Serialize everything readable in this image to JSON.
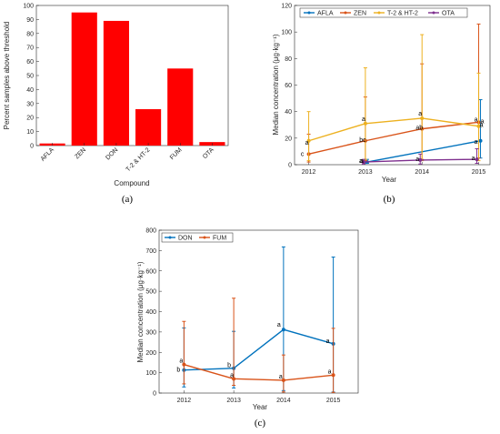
{
  "colors": {
    "red": "#ff0000",
    "blue": "#0072bd",
    "orange": "#d95319",
    "yellow": "#edb120",
    "purple": "#7e2f8e",
    "axis": "#262626"
  },
  "chart_data": [
    {
      "type": "bar",
      "panel_label": "(a)",
      "categories": [
        "AFLA",
        "ZEN",
        "DON",
        "T-2 & HT-2",
        "FUM",
        "OTA"
      ],
      "values": [
        1.5,
        95,
        89,
        26,
        55,
        2.5
      ],
      "xlabel": "Compound",
      "ylabel": "Percent samples above threshold",
      "ylim": [
        0,
        100
      ],
      "yticks": [
        0,
        10,
        20,
        30,
        40,
        50,
        60,
        70,
        80,
        90,
        100
      ],
      "grid": false,
      "bar_color": "#ff0000"
    },
    {
      "type": "line",
      "panel_label": "(b)",
      "x": [
        2012,
        2013,
        2014,
        2015
      ],
      "xticks": [
        "2012",
        "2013",
        "2014",
        "2015"
      ],
      "xlim": [
        2011.75,
        2015.2
      ],
      "xlabel": "Year",
      "ylabel": "Median concentration (μg·kg⁻¹)",
      "ylim": [
        0,
        120
      ],
      "yticks": [
        0,
        20,
        40,
        60,
        80,
        100,
        120
      ],
      "legend_position": "top",
      "series": [
        {
          "name": "AFLA",
          "color": "#0072bd",
          "values": [
            null,
            2,
            null,
            18
          ],
          "lower": [
            null,
            1,
            null,
            5
          ],
          "upper": [
            null,
            4,
            null,
            49
          ]
        },
        {
          "name": "ZEN",
          "color": "#d95319",
          "values": [
            8,
            18,
            27,
            32
          ],
          "lower": [
            2,
            3,
            4,
            5
          ],
          "upper": [
            23,
            51,
            76,
            106
          ]
        },
        {
          "name": "T-2 & HT-2",
          "color": "#edb120",
          "values": [
            18,
            31,
            35,
            29
          ],
          "lower": [
            3,
            4,
            3,
            3
          ],
          "upper": [
            40,
            73,
            98,
            69
          ]
        },
        {
          "name": "OTA",
          "color": "#7e2f8e",
          "values": [
            null,
            2,
            3.5,
            4
          ],
          "lower": [
            null,
            0.5,
            0.5,
            1
          ],
          "upper": [
            null,
            4,
            8,
            12
          ]
        }
      ],
      "annotations": [
        "c",
        "a",
        "a",
        "bc",
        "a",
        "a",
        "ab",
        "a",
        "a",
        "a",
        "a",
        "a",
        "a",
        "a"
      ]
    },
    {
      "type": "line",
      "panel_label": "(c)",
      "x": [
        2012,
        2013,
        2014,
        2015
      ],
      "xticks": [
        "2012",
        "2013",
        "2014",
        "2015"
      ],
      "xlim": [
        2011.5,
        2015.5
      ],
      "xlabel": "Year",
      "ylabel": "Median concentration (μg·kg⁻¹)",
      "ylim": [
        0,
        800
      ],
      "yticks": [
        0,
        100,
        200,
        300,
        400,
        500,
        600,
        700,
        800
      ],
      "legend_position": "top-left",
      "series": [
        {
          "name": "DON",
          "color": "#0072bd",
          "values": [
            113,
            122,
            312,
            242
          ],
          "lower": [
            30,
            25,
            12,
            5
          ],
          "upper": [
            320,
            303,
            718,
            668
          ]
        },
        {
          "name": "FUM",
          "color": "#d95319",
          "values": [
            140,
            70,
            63,
            88
          ],
          "lower": [
            45,
            38,
            5,
            3
          ],
          "upper": [
            352,
            466,
            187,
            318
          ]
        }
      ],
      "annotations": [
        "b",
        "a",
        "b",
        "a",
        "a",
        "a",
        "a",
        "a"
      ]
    }
  ]
}
